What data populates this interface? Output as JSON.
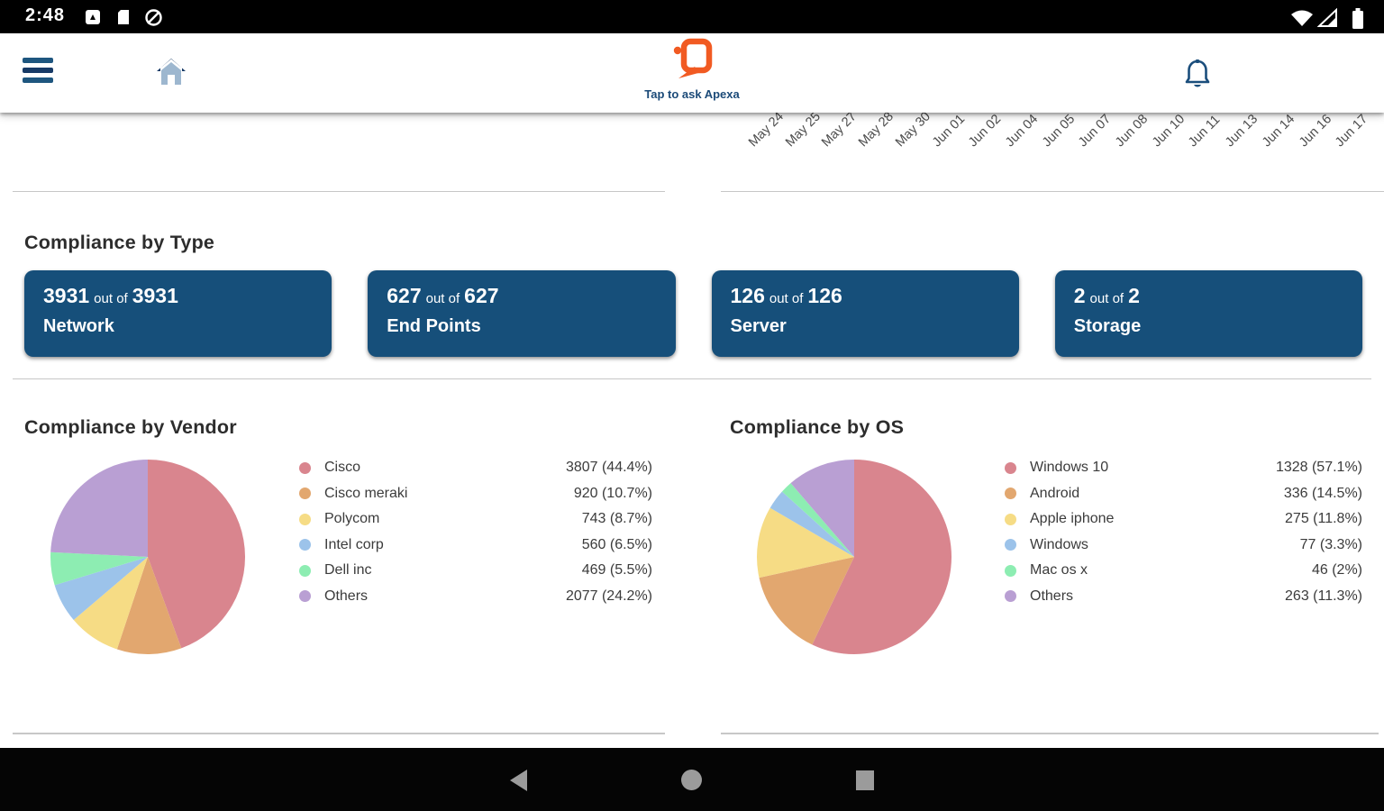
{
  "status_bar": {
    "time": "2:48",
    "left_icons": [
      "screenshot-icon",
      "sd-card-icon",
      "data-saver-icon"
    ],
    "right_icons": [
      "wifi-icon",
      "cellular-signal-icon",
      "battery-icon"
    ]
  },
  "header": {
    "caption": "Tap to ask Apexa",
    "icons": [
      "hamburger-menu-icon",
      "home-icon",
      "apexa-logo-icon",
      "bell-icon"
    ]
  },
  "top_chart": {
    "date_labels": [
      "May 24",
      "May 25",
      "May 27",
      "May 28",
      "May 30",
      "Jun 01",
      "Jun 02",
      "Jun 04",
      "Jun 05",
      "Jun 07",
      "Jun 08",
      "Jun 10",
      "Jun 11",
      "Jun 13",
      "Jun 14",
      "Jun 16",
      "Jun 17"
    ]
  },
  "compliance_by_type": {
    "title": "Compliance by Type",
    "cards": [
      {
        "count": "3931",
        "separator": "out of",
        "total": "3931",
        "label": "Network"
      },
      {
        "count": "627",
        "separator": "out of",
        "total": "627",
        "label": "End Points"
      },
      {
        "count": "126",
        "separator": "out of",
        "total": "126",
        "label": "Server"
      },
      {
        "count": "2",
        "separator": "out of",
        "total": "2",
        "label": "Storage"
      }
    ]
  },
  "chart_data": [
    {
      "type": "pie",
      "title": "Compliance by Vendor",
      "labels": [
        "Cisco",
        "Cisco meraki",
        "Polycom",
        "Intel corp",
        "Dell inc",
        "Others"
      ],
      "values": [
        3807,
        920,
        743,
        560,
        469,
        2077
      ],
      "percents": [
        44.4,
        10.7,
        8.7,
        6.5,
        5.5,
        24.2
      ],
      "legend_values": [
        "3807 (44.4%)",
        "920 (10.7%)",
        "743 (8.7%)",
        "560 (6.5%)",
        "469 (5.5%)",
        "2077 (24.2%)"
      ],
      "colors": [
        "#d9858e",
        "#e2a76f",
        "#f6dc85",
        "#9cc3ea",
        "#8dedb2",
        "#b99fd3"
      ],
      "start_angle_deg": 0,
      "direction": "clockwise",
      "legend_position": "right"
    },
    {
      "type": "pie",
      "title": "Compliance by OS",
      "labels": [
        "Windows 10",
        "Android",
        "Apple iphone",
        "Windows",
        "Mac os x",
        "Others"
      ],
      "values": [
        1328,
        336,
        275,
        77,
        46,
        263
      ],
      "percents": [
        57.1,
        14.5,
        11.8,
        3.3,
        2.0,
        11.3
      ],
      "legend_values": [
        "1328 (57.1%)",
        "336 (14.5%)",
        "275 (11.8%)",
        "77 (3.3%)",
        "46 (2%)",
        "263 (11.3%)"
      ],
      "colors": [
        "#d9858e",
        "#e2a76f",
        "#f6dc85",
        "#9cc3ea",
        "#8dedb2",
        "#b99fd3"
      ],
      "start_angle_deg": 0,
      "direction": "clockwise",
      "legend_position": "right"
    }
  ],
  "nav_bar": {
    "icons": [
      "back-icon",
      "home-circle-icon",
      "recents-square-icon"
    ]
  },
  "colors": {
    "accent_blue": "#1b4e7c",
    "logo_orange": "#f15a22",
    "card_blue": "#164f7a",
    "divider": "#c7c7c7",
    "status_bar_bg": "#000000",
    "nav_bar_bg": "#050505"
  }
}
